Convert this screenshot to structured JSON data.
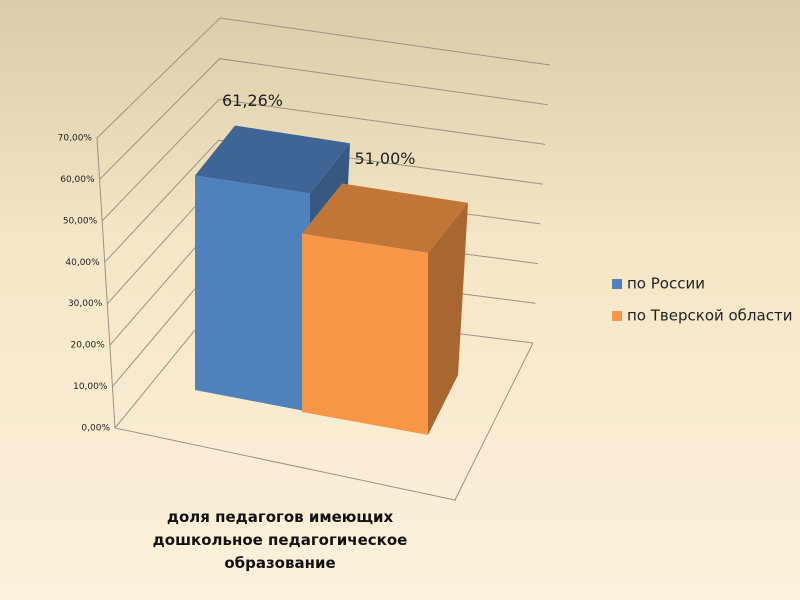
{
  "chart_data": {
    "type": "bar3d",
    "categories": [
      "доля педагогов  имеющих дошкольное педагогическое образование"
    ],
    "series": [
      {
        "name": "по России",
        "color": "#4f81bd",
        "values": [
          61.26
        ],
        "value_labels": [
          "61,26%"
        ]
      },
      {
        "name": "по Тверской области",
        "color": "#f79646",
        "values": [
          51.0
        ],
        "value_labels": [
          "51,00%"
        ]
      }
    ],
    "ylim": [
      0,
      70
    ],
    "yticks": [
      {
        "value": 0,
        "label": "0,00%"
      },
      {
        "value": 10,
        "label": "10,00%"
      },
      {
        "value": 20,
        "label": "20,00%"
      },
      {
        "value": 30,
        "label": "30,00%"
      },
      {
        "value": 40,
        "label": "40,00%"
      },
      {
        "value": 50,
        "label": "50,00%"
      },
      {
        "value": 60,
        "label": "60,00%"
      },
      {
        "value": 70,
        "label": "70,00%"
      }
    ],
    "grid": true,
    "legend": "right"
  }
}
